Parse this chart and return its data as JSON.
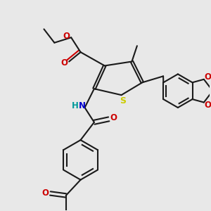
{
  "bg_color": "#e8e8e8",
  "bond_color": "#1a1a1a",
  "sulfur_color": "#cccc00",
  "nitrogen_color": "#0000cc",
  "oxygen_color": "#cc0000",
  "hydrogen_color": "#009999",
  "line_width": 1.5,
  "figsize": [
    3.0,
    3.0
  ],
  "dpi": 100,
  "xlim": [
    0,
    10
  ],
  "ylim": [
    0,
    10
  ]
}
